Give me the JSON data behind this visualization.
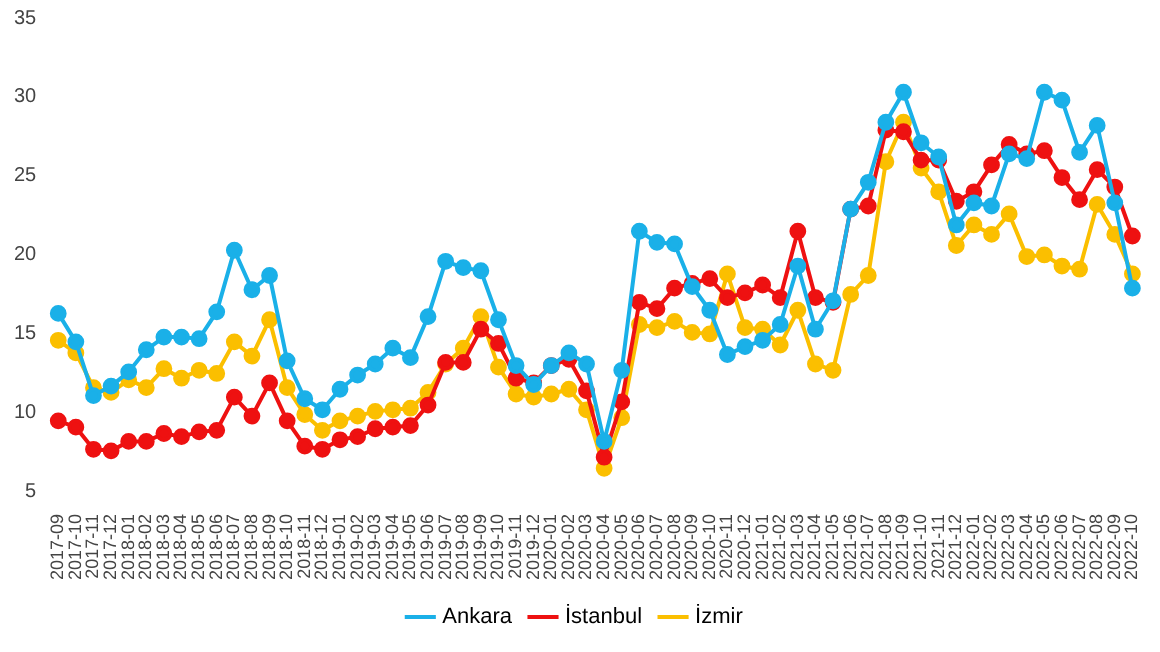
{
  "chart_data": {
    "type": "line",
    "categories": [
      "2017-09",
      "2017-10",
      "2017-11",
      "2017-12",
      "2018-01",
      "2018-02",
      "2018-03",
      "2018-04",
      "2018-05",
      "2018-06",
      "2018-07",
      "2018-08",
      "2018-09",
      "2018-10",
      "2018-11",
      "2018-12",
      "2019-01",
      "2019-02",
      "2019-03",
      "2019-04",
      "2019-05",
      "2019-06",
      "2019-07",
      "2019-08",
      "2019-09",
      "2019-10",
      "2019-11",
      "2019-12",
      "2020-01",
      "2020-02",
      "2020-03",
      "2020-04",
      "2020-05",
      "2020-06",
      "2020-07",
      "2020-08",
      "2020-09",
      "2020-10",
      "2020-11",
      "2020-12",
      "2021-01",
      "2021-02",
      "2021-03",
      "2021-04",
      "2021-05",
      "2021-06",
      "2021-07",
      "2021-08",
      "2021-09",
      "2021-10",
      "2021-11",
      "2021-12",
      "2022-01",
      "2022-02",
      "2022-03",
      "2022-04",
      "2022-05",
      "2022-06",
      "2022-07",
      "2022-08",
      "2022-09",
      "2022-10"
    ],
    "series": [
      {
        "name": "Ankara",
        "color": "#1ab0e8",
        "values": [
          16.3,
          14.5,
          11.1,
          11.7,
          12.6,
          14.0,
          14.8,
          14.8,
          14.7,
          16.4,
          20.3,
          17.8,
          18.7,
          13.3,
          10.9,
          10.2,
          11.5,
          12.4,
          13.1,
          14.1,
          13.5,
          16.1,
          19.6,
          19.2,
          19.0,
          15.9,
          13.0,
          11.8,
          13.0,
          13.8,
          13.1,
          8.2,
          12.7,
          21.5,
          20.8,
          20.7,
          18.0,
          16.5,
          13.7,
          14.2,
          14.6,
          15.6,
          19.3,
          15.3,
          17.1,
          22.9,
          24.6,
          28.4,
          30.3,
          27.1,
          26.2,
          21.9,
          23.3,
          23.1,
          26.4,
          26.1,
          30.3,
          29.8,
          26.5,
          28.2,
          23.3,
          17.9
        ]
      },
      {
        "name": "İstanbul",
        "color": "#ee1111",
        "values": [
          9.5,
          9.1,
          7.7,
          7.6,
          8.2,
          8.2,
          8.7,
          8.5,
          8.8,
          8.9,
          11.0,
          9.8,
          11.9,
          9.5,
          7.9,
          7.7,
          8.3,
          8.5,
          9.0,
          9.1,
          9.2,
          10.5,
          13.2,
          13.2,
          15.3,
          14.4,
          12.2,
          11.9,
          13.0,
          13.4,
          11.4,
          7.2,
          10.7,
          17.0,
          16.6,
          17.9,
          18.2,
          18.5,
          17.3,
          17.6,
          18.1,
          17.3,
          21.5,
          17.3,
          17.0,
          22.9,
          23.1,
          27.9,
          27.8,
          26.0,
          26.0,
          23.4,
          24.0,
          25.7,
          27.0,
          26.4,
          26.6,
          24.9,
          23.5,
          25.4,
          24.3,
          21.2
        ]
      },
      {
        "name": "İzmir",
        "color": "#fbbf00",
        "values": [
          14.6,
          13.8,
          11.6,
          11.3,
          12.1,
          11.6,
          12.8,
          12.2,
          12.7,
          12.5,
          14.5,
          13.6,
          15.9,
          11.6,
          9.9,
          8.9,
          9.5,
          9.8,
          10.1,
          10.2,
          10.3,
          11.3,
          13.1,
          14.1,
          16.1,
          12.9,
          11.2,
          11.0,
          11.2,
          11.5,
          10.2,
          6.5,
          9.7,
          15.6,
          15.4,
          15.8,
          15.1,
          15.0,
          18.8,
          15.4,
          15.3,
          14.3,
          16.5,
          13.1,
          12.7,
          17.5,
          18.7,
          25.9,
          28.4,
          25.5,
          24.0,
          20.6,
          21.9,
          21.3,
          22.6,
          19.9,
          20.0,
          19.3,
          19.1,
          23.2,
          21.3,
          18.8
        ]
      }
    ],
    "ylim": [
      5,
      35
    ],
    "yticks": [
      5,
      10,
      15,
      20,
      25,
      30,
      35
    ],
    "grid": false,
    "legend": "bottom",
    "marker": "circle",
    "line_style": "solid"
  }
}
